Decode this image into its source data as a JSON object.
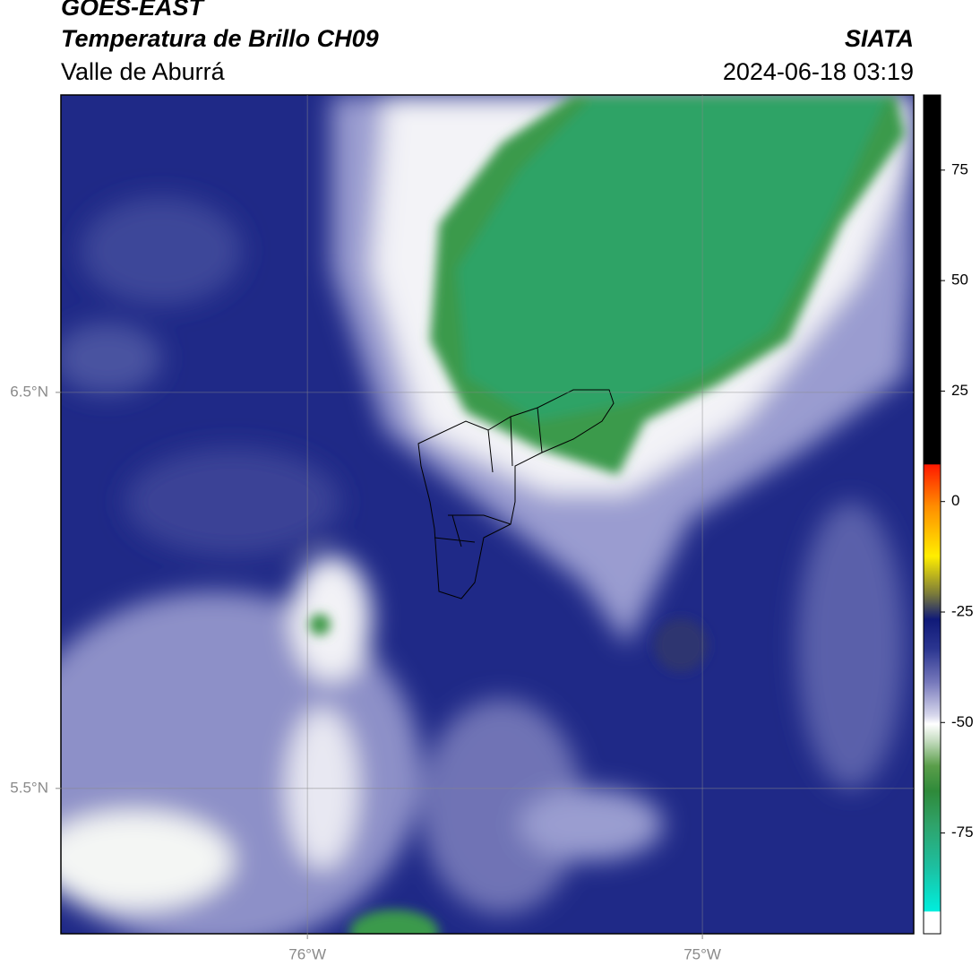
{
  "header": {
    "title": "GOES-EAST",
    "subtitle": "Temperatura de Brillo CH09",
    "region": "Valle de Aburrá",
    "agency": "SIATA",
    "timestamp": "2024-06-18 03:19"
  },
  "map": {
    "lonlim": [
      -76.624,
      -74.465
    ],
    "latlim": [
      5.133,
      7.251
    ],
    "xticks": [
      {
        "value": -76,
        "label": "76°W"
      },
      {
        "value": -75,
        "label": "75°W"
      }
    ],
    "yticks": [
      {
        "value": 6.5,
        "label": "6.5°N"
      },
      {
        "value": 5.5,
        "label": "5.5°N"
      }
    ],
    "grid": true
  },
  "colorbar": {
    "lim": [
      -97.8,
      92
    ],
    "ticks": [
      75,
      50,
      25,
      0,
      -25,
      -50,
      -75
    ]
  }
}
